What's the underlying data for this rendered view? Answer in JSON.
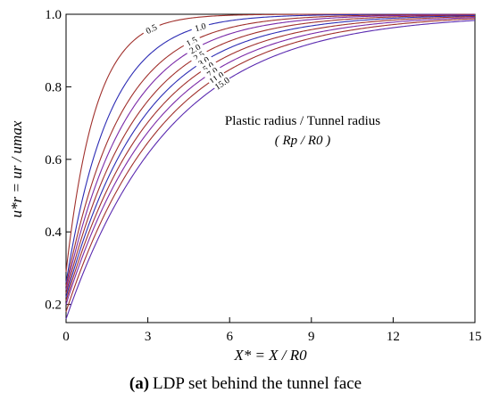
{
  "chart_data": {
    "type": "line",
    "xlabel": "X* = X / R0",
    "ylabel": "u*r = ur / umax",
    "xlim": [
      0,
      15
    ],
    "ylim": [
      0.15,
      1.0
    ],
    "x_ticks": [
      "0",
      "3",
      "6",
      "9",
      "12",
      "15"
    ],
    "y_ticks": [
      "0.2",
      "0.4",
      "0.6",
      "0.8",
      "1.0"
    ],
    "grid": false,
    "annotation_line1": "Plastic radius / Tunnel radius",
    "annotation_line2": "( Rp / R0 )",
    "caption_prefix": "(a)",
    "caption_text": "LDP set behind the tunnel face",
    "series": [
      {
        "label": "0.5",
        "color": "#a0302c",
        "y0": 0.29,
        "k": 0.92
      },
      {
        "label": "1.0",
        "color": "#2c2cb4",
        "y0": 0.26,
        "k": 0.62
      },
      {
        "label": "1.5",
        "color": "#a0302c",
        "y0": 0.25,
        "k": 0.5
      },
      {
        "label": "2.0",
        "color": "#7a2aa8",
        "y0": 0.24,
        "k": 0.44
      },
      {
        "label": "2.5",
        "color": "#a0302c",
        "y0": 0.23,
        "k": 0.39
      },
      {
        "label": "3.0",
        "color": "#2c2cb4",
        "y0": 0.22,
        "k": 0.355
      },
      {
        "label": "5.0",
        "color": "#a0302c",
        "y0": 0.21,
        "k": 0.325
      },
      {
        "label": "7.0",
        "color": "#7a2aa8",
        "y0": 0.2,
        "k": 0.3
      },
      {
        "label": "11.0",
        "color": "#a0302c",
        "y0": 0.18,
        "k": 0.28
      },
      {
        "label": "15.0",
        "color": "#5a2ab0",
        "y0": 0.16,
        "k": 0.26
      }
    ]
  }
}
